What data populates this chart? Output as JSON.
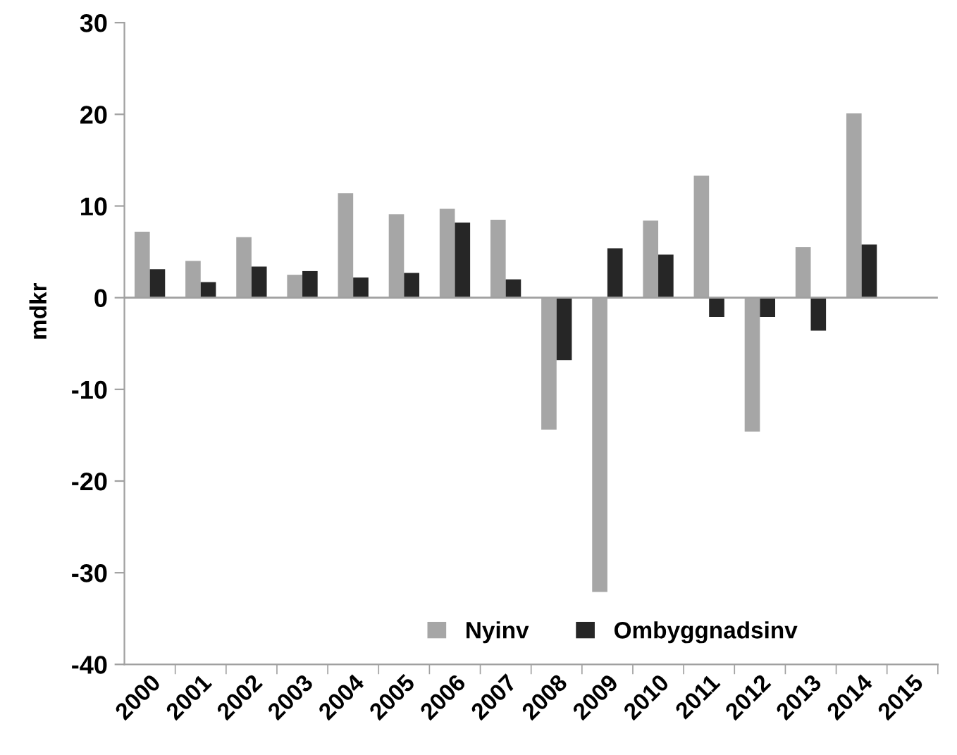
{
  "chart_data": {
    "type": "bar",
    "ylabel": "mdkr",
    "categories": [
      "2000",
      "2001",
      "2002",
      "2003",
      "2004",
      "2005",
      "2006",
      "2007",
      "2008",
      "2009",
      "2010",
      "2011",
      "2012",
      "2013",
      "2014",
      "2015"
    ],
    "series": [
      {
        "name": "Nyinv",
        "color": "#a6a6a6",
        "values": [
          7.2,
          4.0,
          6.6,
          2.5,
          11.4,
          9.1,
          9.7,
          8.5,
          -14.4,
          -32.1,
          8.4,
          13.3,
          -14.6,
          5.5,
          20.1,
          null
        ]
      },
      {
        "name": "Ombyggnadsinv",
        "color": "#262626",
        "values": [
          3.1,
          1.7,
          3.4,
          2.9,
          2.2,
          2.7,
          8.2,
          2.0,
          -6.8,
          5.4,
          4.7,
          -2.1,
          -2.1,
          -3.6,
          5.8,
          null
        ]
      }
    ],
    "ylim": [
      -40,
      30
    ],
    "yticks": [
      -40,
      -30,
      -20,
      -10,
      0,
      10,
      20,
      30
    ],
    "ref_lines": [
      {
        "axis": "y",
        "value": 0,
        "color": "#a0a0a0"
      }
    ],
    "legend": "bottom"
  }
}
